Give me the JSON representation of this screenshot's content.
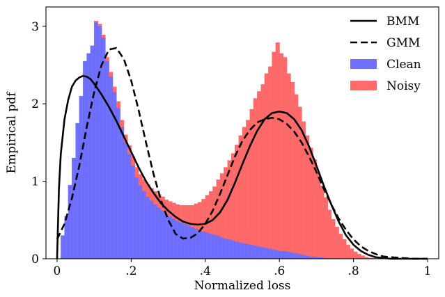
{
  "chart_data": {
    "type": "bar",
    "xlabel": "Normalized loss",
    "ylabel": "Empirical pdf",
    "xlim": [
      -0.03,
      1.03
    ],
    "ylim": [
      0,
      3.25
    ],
    "x_ticks": [
      {
        "value": 0,
        "label": "0"
      },
      {
        "value": 0.2,
        "label": ".2"
      },
      {
        "value": 0.4,
        "label": ".4"
      },
      {
        "value": 0.6,
        "label": ".6"
      },
      {
        "value": 0.8,
        "label": ".8"
      },
      {
        "value": 1.0,
        "label": "1"
      }
    ],
    "y_ticks": [
      {
        "value": 0,
        "label": "0"
      },
      {
        "value": 1,
        "label": "1"
      },
      {
        "value": 2,
        "label": "2"
      },
      {
        "value": 3,
        "label": "3"
      }
    ],
    "legend_position": "top-right",
    "legend": [
      {
        "name": "BMM",
        "kind": "line",
        "style": "solid",
        "color": "#000000"
      },
      {
        "name": "GMM",
        "kind": "line",
        "style": "dashed",
        "color": "#000000"
      },
      {
        "name": "Clean",
        "kind": "patch",
        "color": "#7070ff"
      },
      {
        "name": "Noisy",
        "kind": "patch",
        "color": "#ff6b6b"
      }
    ],
    "histogram": {
      "bin_width": 0.01,
      "bin_start": 0.0,
      "clean_color": "#7070ff",
      "noisy_color": "#ff6b6b",
      "clean": [
        0.0,
        0.3,
        0.55,
        0.95,
        1.3,
        1.75,
        2.1,
        2.55,
        2.65,
        2.75,
        3.05,
        3.0,
        2.85,
        2.55,
        2.35,
        2.15,
        1.95,
        1.7,
        1.5,
        1.35,
        1.2,
        1.05,
        0.95,
        0.87,
        0.8,
        0.75,
        0.7,
        0.66,
        0.62,
        0.58,
        0.55,
        0.52,
        0.49,
        0.47,
        0.45,
        0.43,
        0.41,
        0.39,
        0.37,
        0.35,
        0.34,
        0.32,
        0.31,
        0.3,
        0.28,
        0.26,
        0.25,
        0.24,
        0.22,
        0.21,
        0.2,
        0.19,
        0.18,
        0.17,
        0.16,
        0.15,
        0.14,
        0.13,
        0.12,
        0.11,
        0.1,
        0.1,
        0.09,
        0.08,
        0.07,
        0.06,
        0.05,
        0.04,
        0.03,
        0.03,
        0.02,
        0.02,
        0.01,
        0.01,
        0.01,
        0.01,
        0.0,
        0.0,
        0.0,
        0.0,
        0.0,
        0.0,
        0.0,
        0.0,
        0.0,
        0.0,
        0.0,
        0.0,
        0.0,
        0.0,
        0.0,
        0.0,
        0.0,
        0.0,
        0.0,
        0.0,
        0.0,
        0.0,
        0.0,
        0.0
      ],
      "noisy": [
        0.0,
        0.0,
        0.0,
        0.0,
        0.0,
        0.0,
        0.0,
        0.0,
        0.0,
        0.0,
        0.02,
        0.03,
        0.04,
        0.05,
        0.06,
        0.07,
        0.08,
        0.09,
        0.1,
        0.11,
        0.12,
        0.13,
        0.14,
        0.15,
        0.16,
        0.16,
        0.17,
        0.17,
        0.18,
        0.18,
        0.19,
        0.2,
        0.21,
        0.22,
        0.24,
        0.26,
        0.28,
        0.32,
        0.36,
        0.42,
        0.48,
        0.55,
        0.62,
        0.72,
        0.82,
        0.92,
        1.02,
        1.12,
        1.25,
        1.38,
        1.5,
        1.6,
        1.75,
        1.9,
        2.0,
        2.1,
        2.25,
        2.35,
        2.55,
        2.68,
        2.55,
        2.5,
        2.3,
        2.2,
        2.05,
        1.9,
        1.72,
        1.55,
        1.4,
        1.25,
        1.08,
        0.92,
        0.78,
        0.62,
        0.5,
        0.4,
        0.32,
        0.25,
        0.18,
        0.13,
        0.09,
        0.06,
        0.04,
        0.02,
        0.01,
        0.01,
        0.0,
        0.0,
        0.0,
        0.0,
        0.0,
        0.0,
        0.0,
        0.0,
        0.0,
        0.0,
        0.0,
        0.0,
        0.0,
        0.0
      ]
    },
    "series": [
      {
        "name": "BMM",
        "style": "solid",
        "x": [
          0.0,
          0.005,
          0.01,
          0.02,
          0.03,
          0.04,
          0.05,
          0.06,
          0.07,
          0.08,
          0.09,
          0.1,
          0.12,
          0.14,
          0.16,
          0.18,
          0.2,
          0.22,
          0.24,
          0.26,
          0.28,
          0.3,
          0.32,
          0.34,
          0.36,
          0.38,
          0.4,
          0.42,
          0.44,
          0.46,
          0.48,
          0.5,
          0.52,
          0.54,
          0.56,
          0.58,
          0.6,
          0.62,
          0.64,
          0.66,
          0.68,
          0.7,
          0.72,
          0.74,
          0.76,
          0.78,
          0.8,
          0.82,
          0.84,
          0.86,
          0.88,
          0.9,
          0.93,
          0.96,
          1.0
        ],
        "y": [
          0.0,
          0.9,
          1.35,
          1.8,
          2.05,
          2.22,
          2.3,
          2.34,
          2.36,
          2.35,
          2.32,
          2.26,
          2.12,
          1.96,
          1.78,
          1.58,
          1.38,
          1.18,
          1.0,
          0.85,
          0.72,
          0.62,
          0.54,
          0.48,
          0.45,
          0.44,
          0.45,
          0.5,
          0.6,
          0.76,
          0.98,
          1.22,
          1.45,
          1.65,
          1.8,
          1.88,
          1.9,
          1.88,
          1.8,
          1.66,
          1.45,
          1.2,
          0.94,
          0.7,
          0.48,
          0.3,
          0.18,
          0.1,
          0.05,
          0.02,
          0.01,
          0.0,
          0.0,
          0.0,
          0.0
        ]
      },
      {
        "name": "GMM",
        "style": "dashed",
        "x": [
          0.0,
          0.02,
          0.04,
          0.06,
          0.08,
          0.1,
          0.12,
          0.14,
          0.16,
          0.18,
          0.2,
          0.22,
          0.24,
          0.26,
          0.28,
          0.3,
          0.32,
          0.34,
          0.36,
          0.38,
          0.4,
          0.42,
          0.44,
          0.46,
          0.48,
          0.5,
          0.52,
          0.54,
          0.56,
          0.58,
          0.6,
          0.62,
          0.64,
          0.66,
          0.68,
          0.7,
          0.72,
          0.74,
          0.76,
          0.78,
          0.8,
          0.82,
          0.84,
          0.86,
          0.88,
          0.9,
          0.93,
          0.96,
          1.0
        ],
        "y": [
          0.25,
          0.45,
          0.78,
          1.2,
          1.7,
          2.15,
          2.5,
          2.7,
          2.72,
          2.58,
          2.3,
          1.92,
          1.5,
          1.1,
          0.76,
          0.5,
          0.32,
          0.26,
          0.27,
          0.33,
          0.45,
          0.62,
          0.84,
          1.08,
          1.32,
          1.52,
          1.66,
          1.76,
          1.8,
          1.82,
          1.8,
          1.74,
          1.64,
          1.5,
          1.32,
          1.12,
          0.9,
          0.7,
          0.52,
          0.37,
          0.25,
          0.16,
          0.1,
          0.06,
          0.03,
          0.02,
          0.01,
          0.0,
          0.0
        ]
      }
    ]
  }
}
